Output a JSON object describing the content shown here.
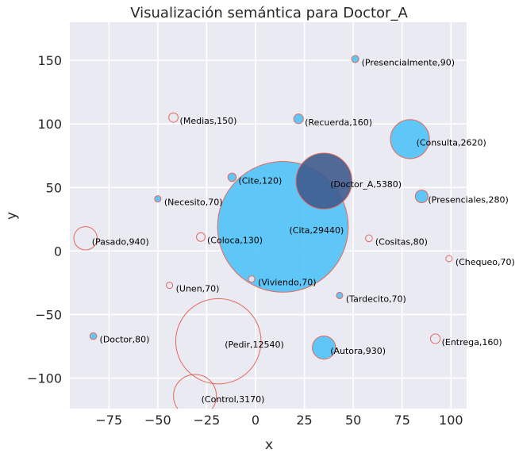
{
  "chart_data": {
    "type": "scatter",
    "title": "Visualización semántica para Doctor_A",
    "xlabel": "x",
    "ylabel": "y",
    "xlim": [
      -95,
      108
    ],
    "ylim": [
      -124,
      180
    ],
    "xticks": [
      -75,
      -50,
      -25,
      0,
      25,
      50,
      75,
      100
    ],
    "yticks": [
      -100,
      -50,
      0,
      50,
      100,
      150
    ],
    "xtick_labels": [
      "−75",
      "−50",
      "−25",
      "0",
      "25",
      "50",
      "75",
      "100"
    ],
    "ytick_labels": [
      "−100",
      "−50",
      "0",
      "50",
      "100",
      "150"
    ],
    "grid": true,
    "colors": {
      "background": "#eaeaf2",
      "filled": "#4fc3f7",
      "edge": "#e8675c",
      "highlight": "#3f5b8c"
    },
    "points": [
      {
        "word": "Cita",
        "count": 29440,
        "x": 14,
        "y": 19,
        "style": "filled",
        "label": "(Cita,29440)"
      },
      {
        "word": "Pedir",
        "count": 12540,
        "x": -19,
        "y": -71,
        "style": "hollow",
        "label": "(Pedir,12540)"
      },
      {
        "word": "Doctor_A",
        "count": 5380,
        "x": 35,
        "y": 55,
        "style": "highlight",
        "label": "(Doctor_A,5380)"
      },
      {
        "word": "Control",
        "count": 3170,
        "x": -31,
        "y": -114,
        "style": "hollow",
        "label": "(Control,3170)"
      },
      {
        "word": "Consulta",
        "count": 2620,
        "x": 79,
        "y": 88,
        "style": "filled",
        "label": "(Consulta,2620)"
      },
      {
        "word": "Pasado",
        "count": 940,
        "x": -87,
        "y": 10,
        "style": "hollow",
        "label": "(Pasado,940)"
      },
      {
        "word": "Autora",
        "count": 930,
        "x": 35,
        "y": -76,
        "style": "filled",
        "label": "(Autora,930)"
      },
      {
        "word": "Presenciales",
        "count": 280,
        "x": 85,
        "y": 43,
        "style": "filled",
        "label": "(Presenciales,280)"
      },
      {
        "word": "Recuerda",
        "count": 160,
        "x": 22,
        "y": 104,
        "style": "filled",
        "label": "(Recuerda,160)"
      },
      {
        "word": "Entrega",
        "count": 160,
        "x": 92,
        "y": -69,
        "style": "hollow",
        "label": "(Entrega,160)"
      },
      {
        "word": "Medias",
        "count": 150,
        "x": -42,
        "y": 105,
        "style": "hollow",
        "label": "(Medias,150)"
      },
      {
        "word": "Coloca",
        "count": 130,
        "x": -28,
        "y": 11,
        "style": "hollow",
        "label": "(Coloca,130)"
      },
      {
        "word": "Cite",
        "count": 120,
        "x": -12,
        "y": 58,
        "style": "filled",
        "label": "(Cite,120)"
      },
      {
        "word": "Presencialmente",
        "count": 90,
        "x": 51,
        "y": 151,
        "style": "filled",
        "label": "(Presencialmente,90)"
      },
      {
        "word": "Doctor",
        "count": 80,
        "x": -83,
        "y": -67,
        "style": "filled",
        "label": "(Doctor,80)"
      },
      {
        "word": "Cositas",
        "count": 80,
        "x": 58,
        "y": 10,
        "style": "hollow",
        "label": "(Cositas,80)"
      },
      {
        "word": "Necesito",
        "count": 70,
        "x": -50,
        "y": 41,
        "style": "filled",
        "label": "(Necesito,70)"
      },
      {
        "word": "Unen",
        "count": 70,
        "x": -44,
        "y": -27,
        "style": "hollow",
        "label": "(Unen,70)"
      },
      {
        "word": "Viviendo",
        "count": 70,
        "x": -2,
        "y": -22,
        "style": "pale",
        "label": "(Viviendo,70)"
      },
      {
        "word": "Tardecito",
        "count": 70,
        "x": 43,
        "y": -35,
        "style": "filled",
        "label": "(Tardecito,70)"
      },
      {
        "word": "Chequeo",
        "count": 70,
        "x": 99,
        "y": -6,
        "style": "hollow",
        "label": "(Chequeo,70)"
      }
    ]
  }
}
